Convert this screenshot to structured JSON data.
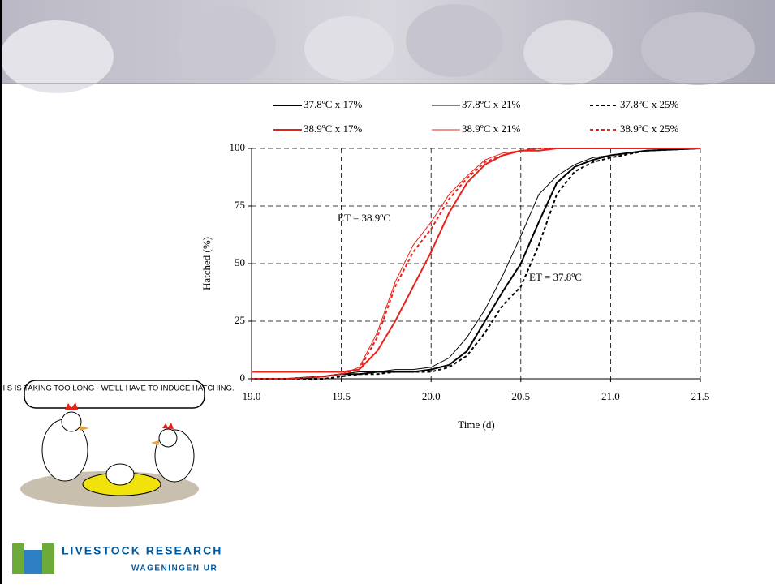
{
  "chart_data": {
    "type": "line",
    "y_label": "Hatched (%)",
    "x_label": "Time (d)",
    "annotations": [
      "ET = 38.9ºC",
      "ET = 37.8ºC"
    ],
    "x": [
      19.0,
      19.2,
      19.4,
      19.5,
      19.6,
      19.7,
      19.8,
      19.9,
      20.0,
      20.1,
      20.2,
      20.3,
      20.4,
      20.5,
      20.6,
      20.7,
      20.8,
      20.9,
      21.0,
      21.2,
      21.5
    ],
    "series": [
      {
        "name": "37.8ºC x 17%",
        "color": "#000000",
        "dashed": false,
        "line_width": 2,
        "values": [
          0,
          0,
          1,
          2,
          2,
          3,
          3,
          3,
          4,
          6,
          12,
          25,
          38,
          50,
          68,
          85,
          92,
          95,
          97,
          99,
          100
        ]
      },
      {
        "name": "37.8ºC x 21%",
        "color": "#000000",
        "dashed": false,
        "line_width": 1,
        "values": [
          0,
          0,
          1,
          2,
          3,
          3,
          4,
          4,
          5,
          9,
          18,
          30,
          45,
          62,
          80,
          88,
          93,
          96,
          97,
          99,
          100
        ]
      },
      {
        "name": "37.8ºC x 25%",
        "color": "#000000",
        "dashed": true,
        "line_width": 2,
        "values": [
          0,
          0,
          0,
          1,
          2,
          2,
          3,
          3,
          3,
          5,
          10,
          20,
          32,
          40,
          58,
          80,
          90,
          94,
          96,
          99,
          100
        ]
      },
      {
        "name": "38.9ºC x 17%",
        "color": "#e8221b",
        "dashed": false,
        "line_width": 2,
        "values": [
          3,
          3,
          3,
          3,
          4,
          12,
          25,
          40,
          55,
          72,
          85,
          93,
          97,
          99,
          99,
          100,
          100,
          100,
          100,
          100,
          100
        ]
      },
      {
        "name": "38.9ºC x 21%",
        "color": "#e8221b",
        "dashed": false,
        "line_width": 1,
        "values": [
          0,
          0,
          1,
          2,
          5,
          20,
          42,
          58,
          68,
          80,
          88,
          95,
          98,
          99,
          100,
          100,
          100,
          100,
          100,
          100,
          100
        ]
      },
      {
        "name": "38.9ºC x 25%",
        "color": "#e8221b",
        "dashed": true,
        "line_width": 2,
        "values": [
          0,
          0,
          1,
          2,
          4,
          18,
          40,
          55,
          65,
          78,
          87,
          94,
          97,
          99,
          100,
          100,
          100,
          100,
          100,
          100,
          100
        ]
      }
    ],
    "xlim": [
      19,
      21.5
    ],
    "ylim": [
      0,
      100
    ],
    "xticks": [
      {
        "value": 19,
        "label": "19.0"
      },
      19.5,
      {
        "value": 20,
        "label": "20.0"
      },
      20.5,
      {
        "value": 21,
        "label": "21.0"
      },
      21.5
    ],
    "yticks": [
      0,
      25,
      50,
      75,
      100
    ],
    "grid": true
  },
  "cartoon": {
    "caption": "THIS IS TAKING TOO LONG - WE'LL HAVE TO INDUCE HATCHING."
  },
  "logo": {
    "line1": "LIVESTOCK RESEARCH",
    "line2": "WAGENINGEN UR"
  }
}
